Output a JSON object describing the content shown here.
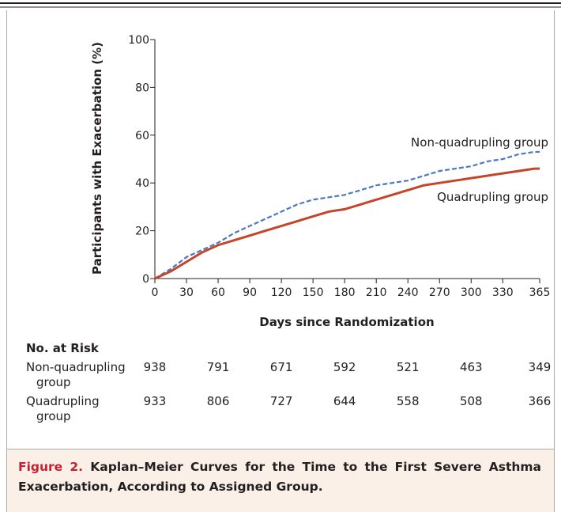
{
  "chart_data": {
    "type": "line",
    "y_label": "Participants with Exacerbation (%)",
    "x_label": "Days since Randomization",
    "xlim": [
      0,
      365
    ],
    "xticks": [
      0,
      30,
      60,
      90,
      120,
      150,
      180,
      210,
      240,
      270,
      300,
      330,
      365
    ],
    "ylim": [
      0,
      100
    ],
    "yticks": [
      0,
      20,
      40,
      60,
      80,
      100
    ],
    "x": [
      0,
      15,
      30,
      45,
      60,
      75,
      90,
      105,
      120,
      135,
      150,
      165,
      180,
      195,
      210,
      225,
      240,
      255,
      270,
      285,
      300,
      315,
      330,
      345,
      360,
      365
    ],
    "series": [
      {
        "name": "Non-quadrupling group",
        "color": "#4a78c2",
        "dashed": true,
        "values": [
          0,
          4,
          9,
          12,
          15,
          19,
          22,
          25,
          28,
          31,
          33,
          34,
          35,
          37,
          39,
          40,
          41,
          43,
          45,
          46,
          47,
          49,
          50,
          52,
          53,
          53
        ]
      },
      {
        "name": "Quadrupling group",
        "color": "#c3462b",
        "dashed": false,
        "values": [
          0,
          3,
          7,
          11,
          14,
          16,
          18,
          20,
          22,
          24,
          26,
          28,
          29,
          31,
          33,
          35,
          37,
          39,
          40,
          41,
          42,
          43,
          44,
          45,
          46,
          46
        ]
      }
    ],
    "risk_table": {
      "title": "No. at Risk",
      "times": [
        0,
        60,
        120,
        180,
        240,
        300,
        365
      ],
      "rows": [
        {
          "label": "Non-quadrupling group",
          "values": [
            938,
            791,
            671,
            592,
            521,
            463,
            349
          ]
        },
        {
          "label": "Quadrupling group",
          "values": [
            933,
            806,
            727,
            644,
            558,
            508,
            366
          ]
        }
      ]
    }
  },
  "caption": {
    "label": "Figure 2.",
    "text": "Kaplan–Meier Curves for the Time to the First Severe Asthma Exacerbation, According to Assigned Group."
  }
}
